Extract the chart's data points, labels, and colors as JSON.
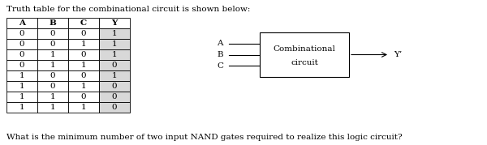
{
  "title": "Truth table for the combinational circuit is shown below:",
  "question": "What is the minimum number of two input NAND gates required to realize this logic circuit?",
  "headers": [
    "A",
    "B",
    "C",
    "Y"
  ],
  "rows": [
    [
      0,
      0,
      0,
      1
    ],
    [
      0,
      0,
      1,
      1
    ],
    [
      0,
      1,
      0,
      1
    ],
    [
      0,
      1,
      1,
      0
    ],
    [
      1,
      0,
      0,
      1
    ],
    [
      1,
      0,
      1,
      0
    ],
    [
      1,
      1,
      0,
      0
    ],
    [
      1,
      1,
      1,
      0
    ]
  ],
  "box_label_line1": "Combinational",
  "box_label_line2": "circuit",
  "inputs": [
    "A",
    "B",
    "C"
  ],
  "output": "Y’",
  "bg_color": "#ffffff",
  "text_color": "#000000"
}
